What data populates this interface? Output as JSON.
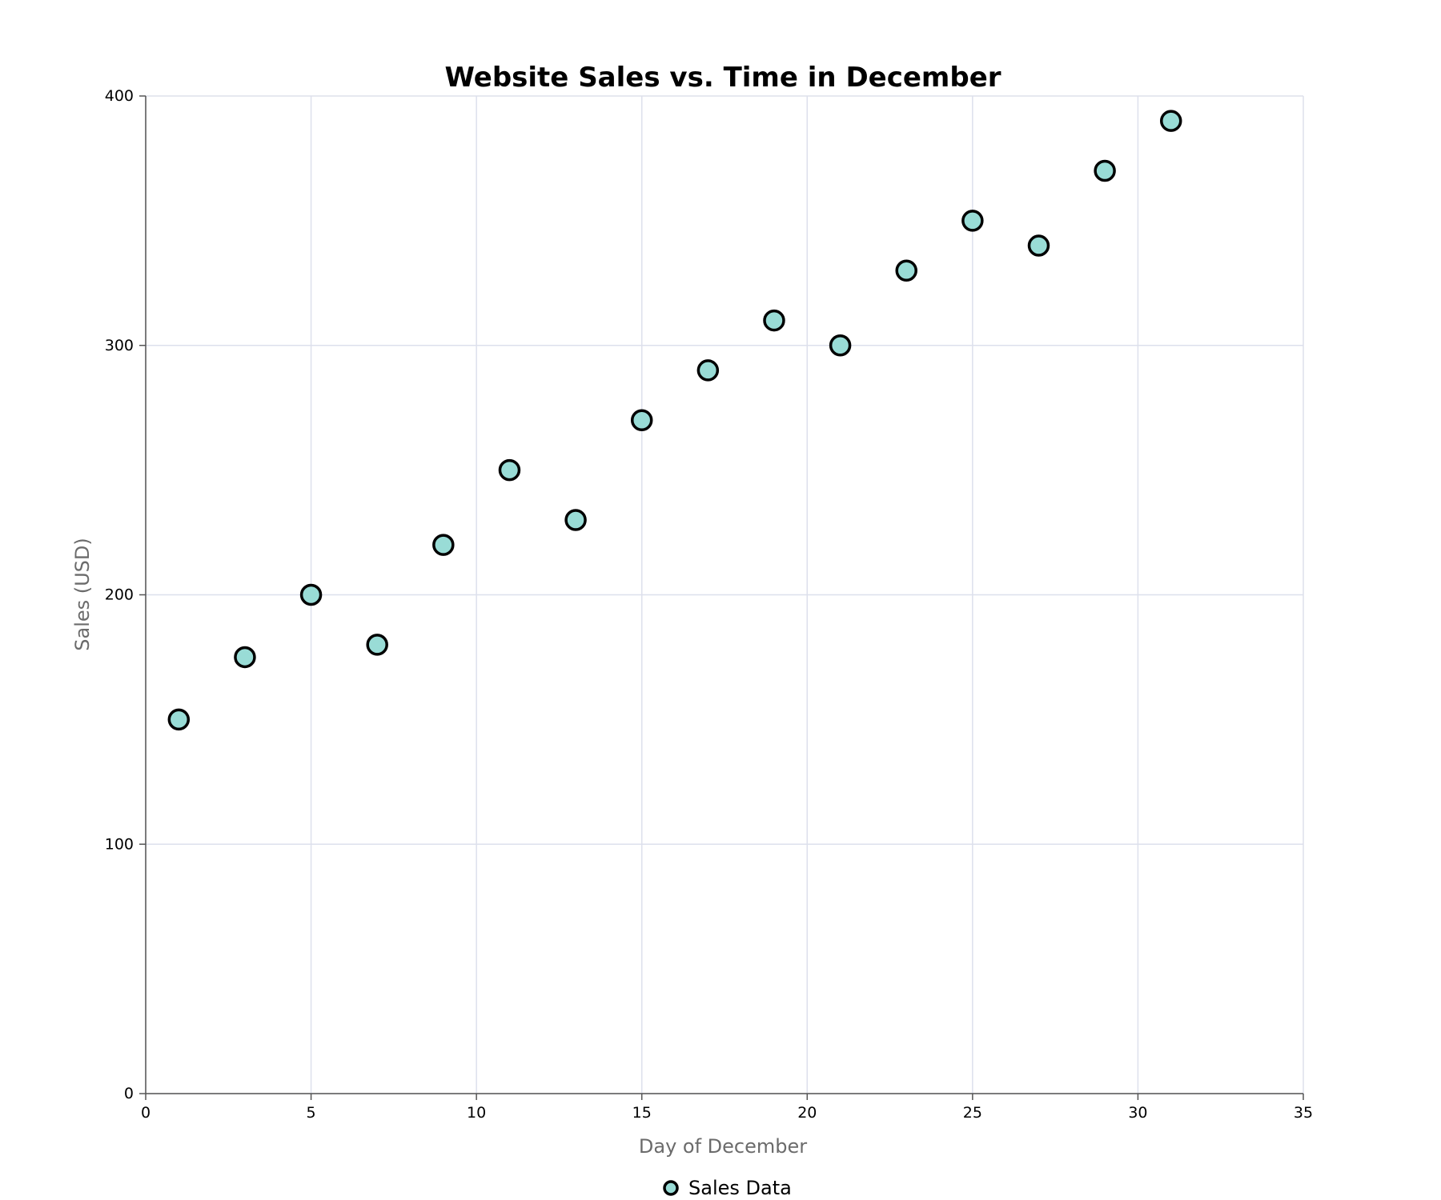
{
  "chart_data": {
    "type": "scatter",
    "title": "Website Sales vs. Time in December",
    "xlabel": "Day of December",
    "ylabel": "Sales (USD)",
    "xlim": [
      0,
      35
    ],
    "ylim": [
      0,
      400
    ],
    "x_ticks": [
      "0",
      "5",
      "10",
      "15",
      "20",
      "25",
      "30",
      "35"
    ],
    "y_ticks": [
      "0",
      "100",
      "200",
      "300",
      "400"
    ],
    "grid": true,
    "legend_position": "bottom-center",
    "series": [
      {
        "name": "Sales Data",
        "color": "#99dcd6",
        "edge_color": "#000000",
        "x": [
          1,
          3,
          5,
          7,
          9,
          11,
          13,
          15,
          17,
          19,
          21,
          23,
          25,
          27,
          29,
          31
        ],
        "y": [
          150,
          175,
          200,
          180,
          220,
          250,
          230,
          270,
          290,
          310,
          300,
          330,
          350,
          340,
          370,
          390
        ]
      }
    ]
  }
}
